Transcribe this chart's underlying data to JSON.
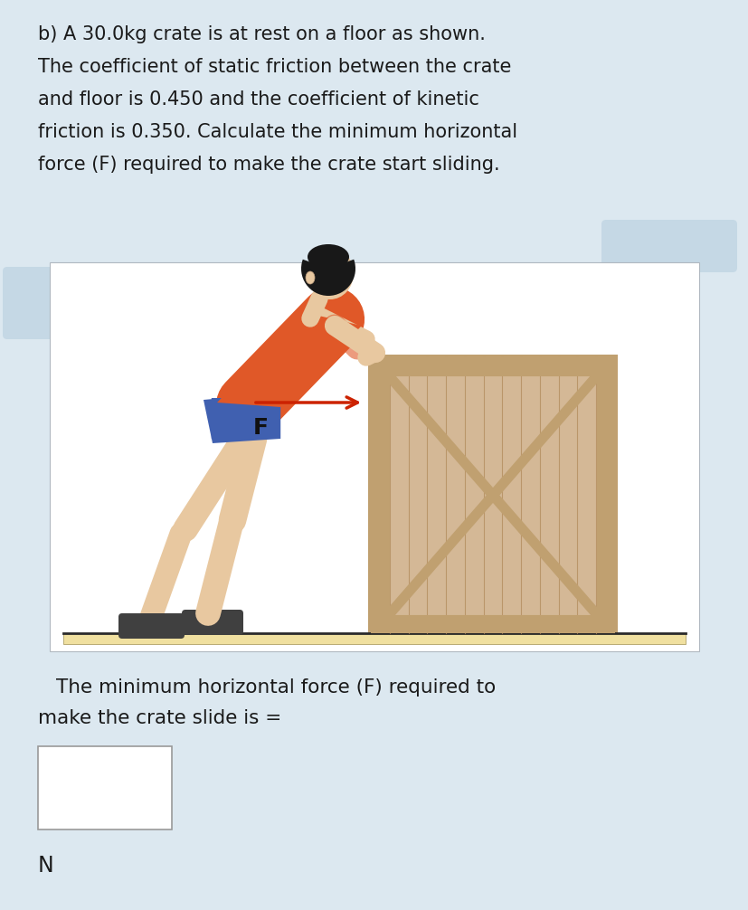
{
  "bg_color": "#dce8f0",
  "text_color": "#1a1a1a",
  "title_lines": [
    "b) A 30.0kg crate is at rest on a floor as shown.",
    "The coefficient of static friction between the crate",
    "and floor is 0.450 and the coefficient of kinetic",
    "friction is 0.350. Calculate the minimum horizontal",
    "force (F) required to make the crate start sliding."
  ],
  "answer_line1": "The minimum horizontal force (F) required to",
  "answer_line2": "make the crate slide is =",
  "unit_label": "N",
  "image_panel_bg": "#ffffff",
  "crate_color_main": "#d4b896",
  "crate_color_frame": "#c0a070",
  "crate_color_dark": "#b08858",
  "floor_color_top": "#f0e0a0",
  "floor_color_bot": "#c8b870",
  "arrow_color": "#cc2200",
  "skin_color": "#e8c8a0",
  "shirt_color": "#e05828",
  "shorts_color": "#4060b0",
  "shoe_color": "#404040",
  "hair_color": "#181818",
  "label_F": "F",
  "blob_color": "#c5d8e5"
}
